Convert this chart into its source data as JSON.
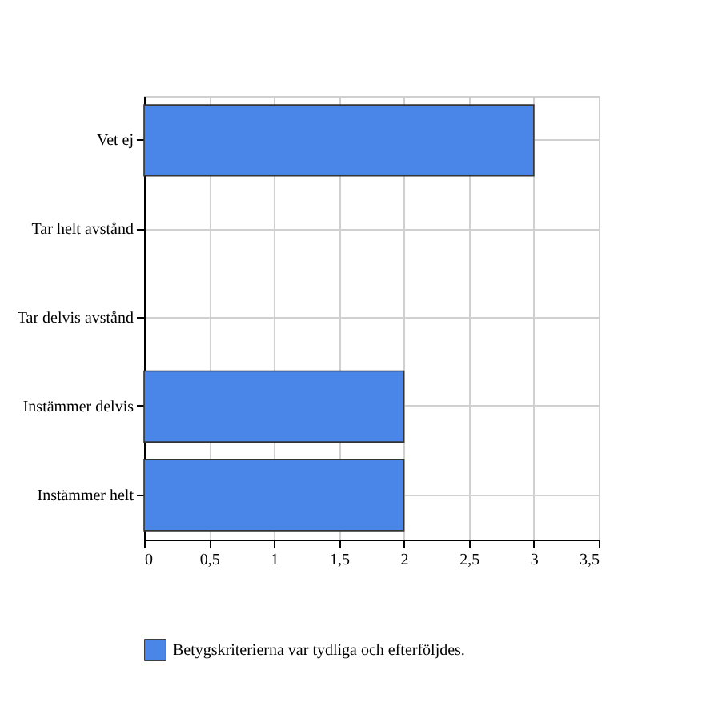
{
  "chart_data": {
    "type": "bar",
    "orientation": "horizontal",
    "categories": [
      "Vet ej",
      "Tar helt avstånd",
      "Tar delvis avstånd",
      "Instämmer delvis",
      "Instämmer helt"
    ],
    "series": [
      {
        "name": "Betygskriterierna var tydliga och efterföljdes.",
        "color": "#4a86e8",
        "values": [
          3,
          0,
          0,
          2,
          2
        ]
      }
    ],
    "xlim": [
      0,
      3.5
    ],
    "xticks": [
      0,
      {
        "value": 0.5,
        "label": "0,5"
      },
      1,
      {
        "value": 1.5,
        "label": "1,5"
      },
      2,
      {
        "value": 2.5,
        "label": "2,5"
      },
      3,
      {
        "value": 3.5,
        "label": "3,5"
      }
    ],
    "grid": true,
    "legend": "bottom left"
  }
}
